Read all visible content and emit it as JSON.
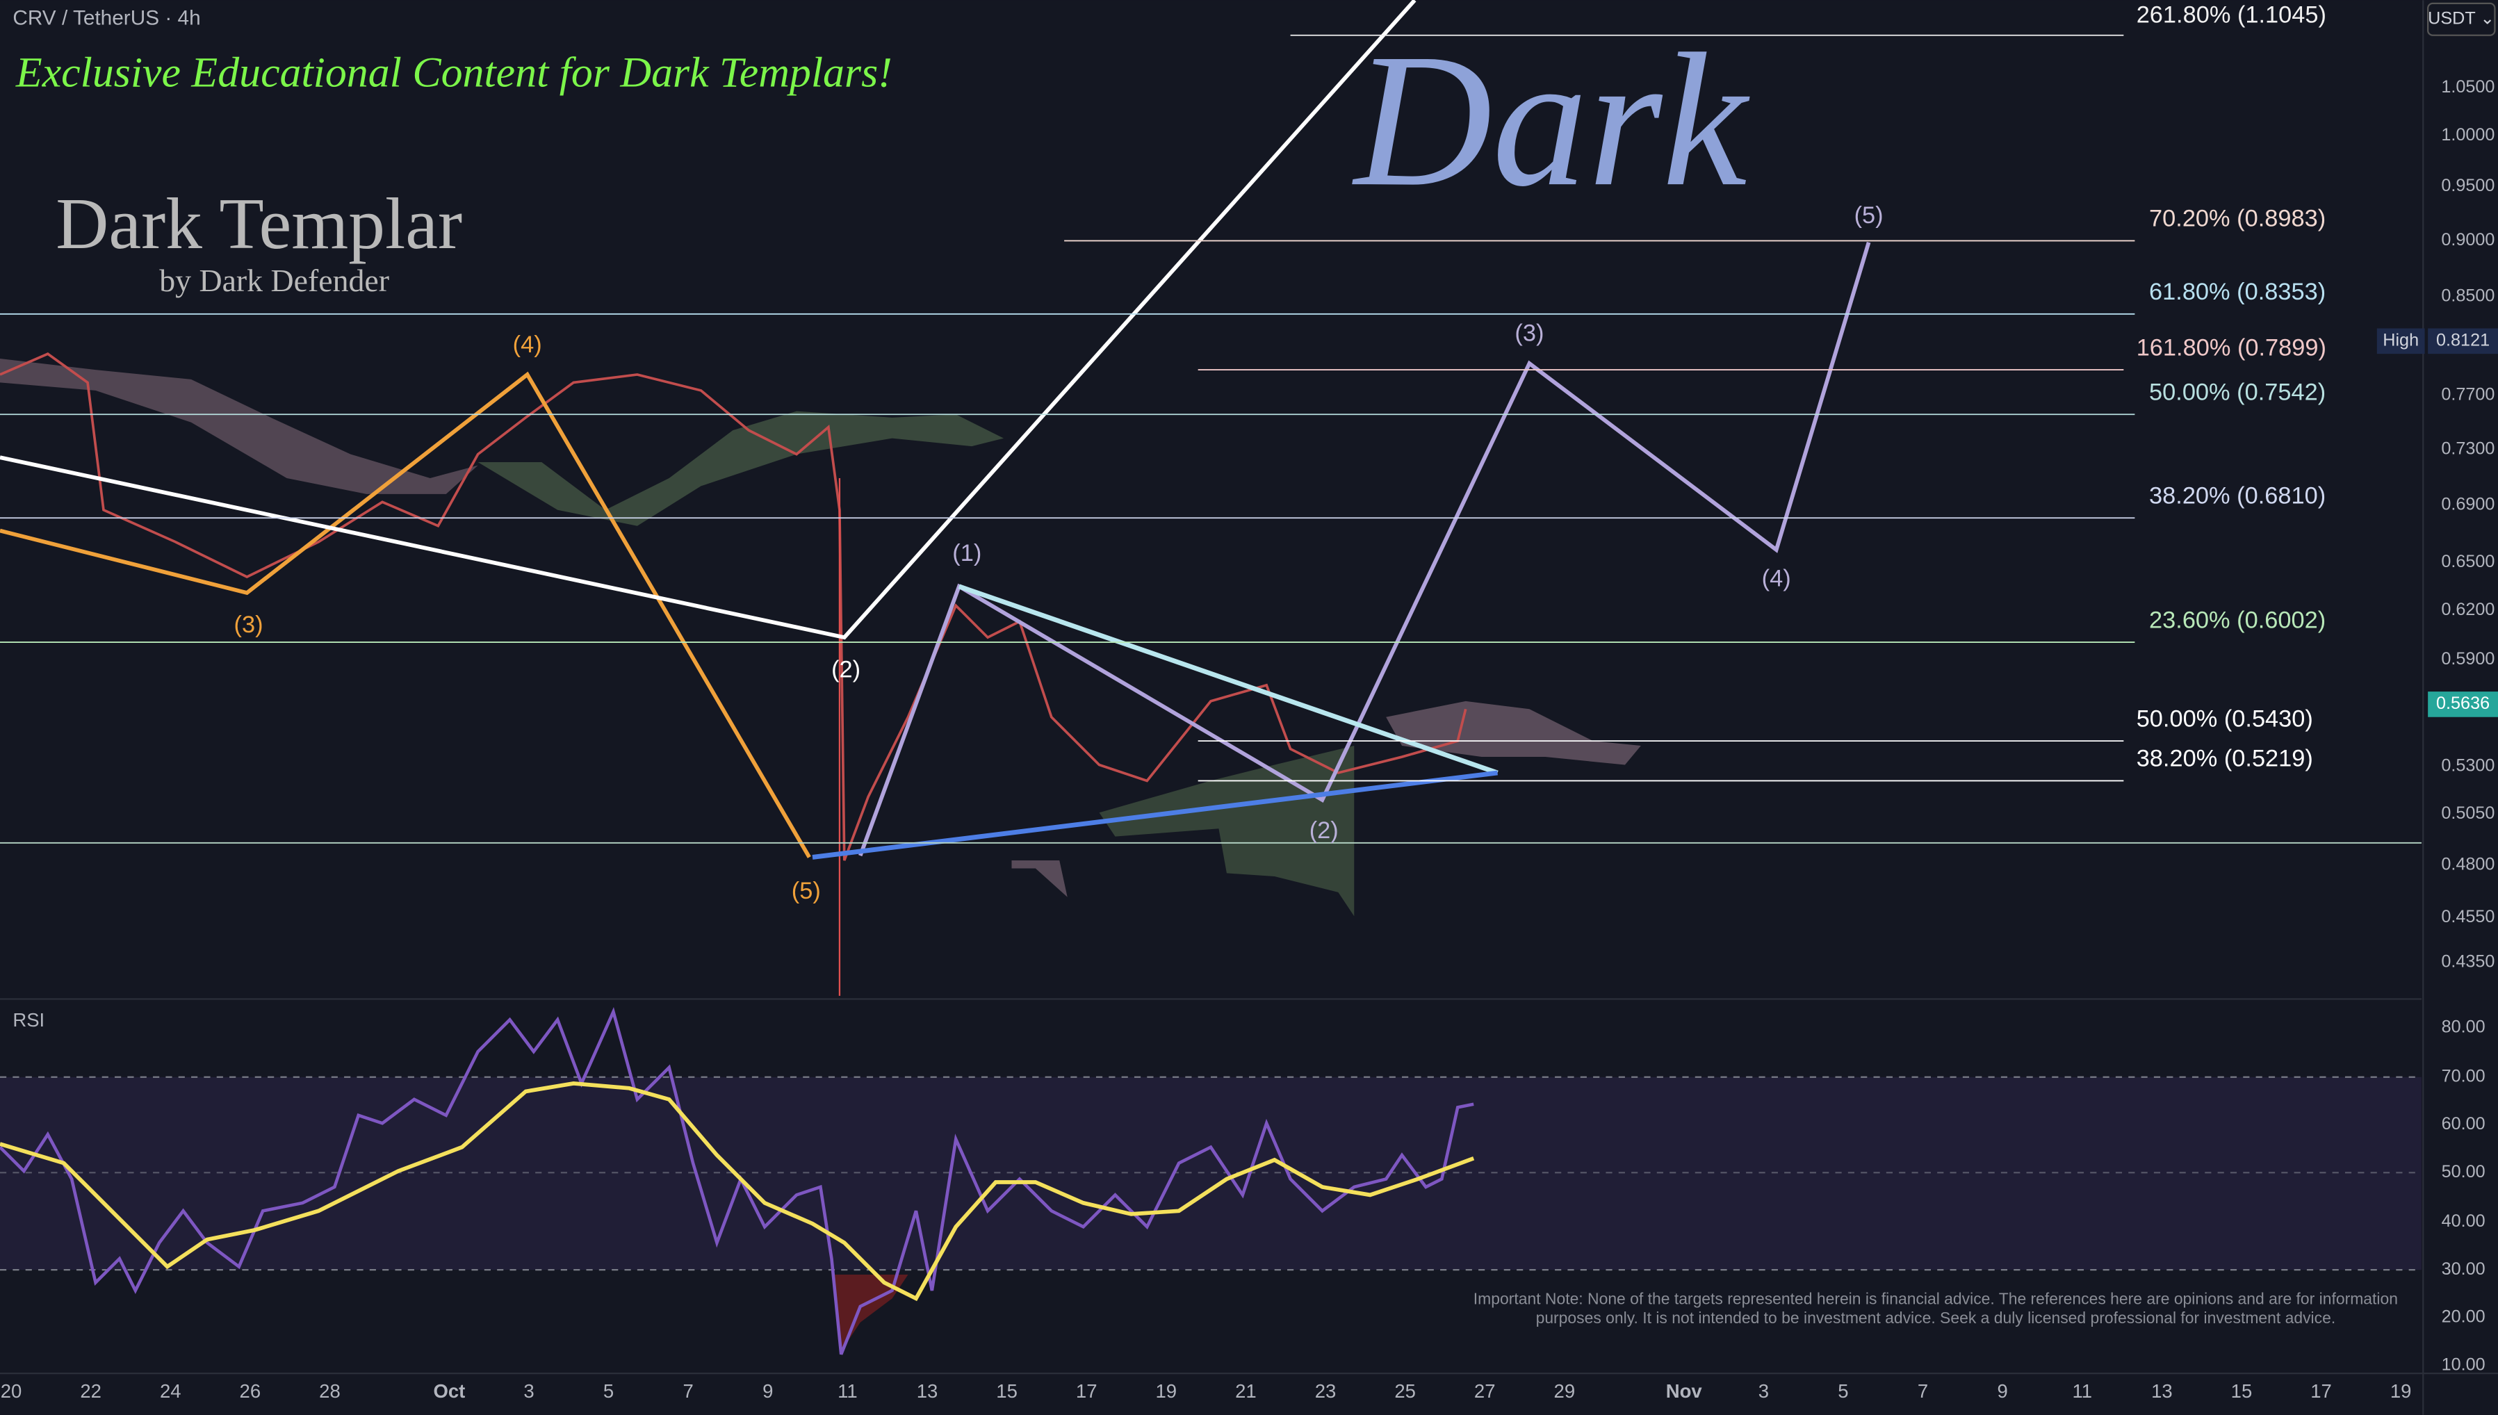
{
  "header": {
    "symbol": "CRV / TetherUS · 4h",
    "banner": "Exclusive Educational Content for Dark Templars!"
  },
  "logo": {
    "title": "Dark Templar",
    "subtitle": "by Dark Defender"
  },
  "watermark": "Dark",
  "price_axis": {
    "currency": "USDT ⌄",
    "labels": [
      "1.0500",
      "1.0000",
      "0.9500",
      "0.9000",
      "0.8500",
      "0.7700",
      "0.7300",
      "0.6900",
      "0.6500",
      "0.6200",
      "0.5900",
      "0.5300",
      "0.5050",
      "0.4800",
      "0.4550",
      "0.4350"
    ],
    "high_label": "High",
    "high_value": "0.8121",
    "current_price": "0.5636"
  },
  "fib_levels": [
    "261.80% (1.1045)",
    "70.20% (0.8983)",
    "61.80% (0.8353)",
    "161.80% (0.7899)",
    "50.00% (0.7542)",
    "38.20% (0.6810)",
    "23.60% (0.6002)",
    "50.00% (0.5430)",
    "38.20% (0.5219)"
  ],
  "waves": {
    "orange": [
      "(4)",
      "(3)",
      "(5)"
    ],
    "white": [
      "(2)"
    ],
    "purple": [
      "(1)",
      "(2)",
      "(3)",
      "(4)",
      "(5)"
    ]
  },
  "rsi": {
    "title": "RSI",
    "axis_labels": [
      "80.00",
      "70.00",
      "60.00",
      "50.00",
      "40.00",
      "30.00",
      "20.00",
      "10.00"
    ]
  },
  "time_axis": [
    "20",
    "22",
    "24",
    "26",
    "28",
    "Oct",
    "3",
    "5",
    "7",
    "9",
    "11",
    "13",
    "15",
    "17",
    "19",
    "21",
    "23",
    "25",
    "27",
    "29",
    "Nov",
    "3",
    "5",
    "7",
    "9",
    "11",
    "13",
    "15",
    "17",
    "19"
  ],
  "note": [
    "Important Note: None of the targets represented herein is financial advice. The references here are opinions and are for information",
    "purposes only. It is not intended to be investment advice. Seek a duly licensed professional for investment advice."
  ]
}
